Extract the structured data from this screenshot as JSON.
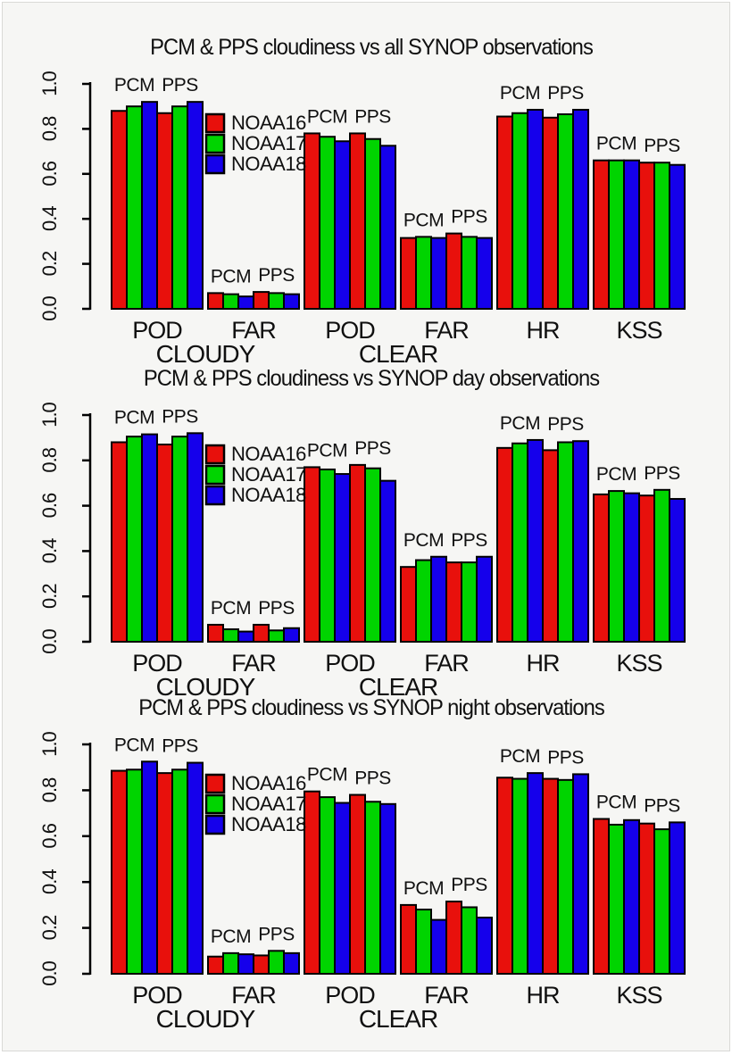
{
  "page": {
    "background": "#f6f6f4"
  },
  "colors": {
    "red": "#e8100c",
    "green": "#00d400",
    "blue": "#1500eb",
    "axis": "#000000"
  },
  "legend": {
    "entries": [
      {
        "label": "NOAA16",
        "color": "#e8100c"
      },
      {
        "label": "NOAA17",
        "color": "#00d400"
      },
      {
        "label": "NOAA18",
        "color": "#1500eb"
      }
    ]
  },
  "subgroup_labels": [
    "PCM",
    "PPS"
  ],
  "y_axis": {
    "ticks": [
      "0.0",
      "0.2",
      "0.4",
      "0.6",
      "0.8",
      "1.0"
    ],
    "min": 0,
    "max": 1
  },
  "x_axis": {
    "group_labels": [
      "POD",
      "FAR",
      "POD",
      "FAR",
      "HR",
      "KSS"
    ],
    "section_labels": [
      {
        "text": "CLOUDY",
        "groups": [
          0,
          1
        ]
      },
      {
        "text": "CLEAR",
        "groups": [
          2,
          3
        ]
      }
    ]
  },
  "chart_data": [
    {
      "type": "bar",
      "title": "PCM & PPS cloudiness vs all SYNOP observations",
      "categories": [
        "POD CLOUDY",
        "FAR CLOUDY",
        "POD CLEAR",
        "FAR CLEAR",
        "HR",
        "KSS"
      ],
      "ylim": [
        0,
        1
      ],
      "series": [
        {
          "name": "PCM NOAA16",
          "color": "#e8100c",
          "values": [
            0.88,
            0.07,
            0.78,
            0.315,
            0.855,
            0.66
          ]
        },
        {
          "name": "PCM NOAA17",
          "color": "#00d400",
          "values": [
            0.9,
            0.065,
            0.765,
            0.32,
            0.87,
            0.66
          ]
        },
        {
          "name": "PCM NOAA18",
          "color": "#1500eb",
          "values": [
            0.92,
            0.055,
            0.745,
            0.315,
            0.885,
            0.66
          ]
        },
        {
          "name": "PPS NOAA16",
          "color": "#e8100c",
          "values": [
            0.87,
            0.075,
            0.78,
            0.335,
            0.85,
            0.65
          ]
        },
        {
          "name": "PPS NOAA17",
          "color": "#00d400",
          "values": [
            0.9,
            0.07,
            0.755,
            0.32,
            0.865,
            0.65
          ]
        },
        {
          "name": "PPS NOAA18",
          "color": "#1500eb",
          "values": [
            0.92,
            0.065,
            0.725,
            0.315,
            0.885,
            0.64
          ]
        }
      ]
    },
    {
      "type": "bar",
      "title": "PCM & PPS cloudiness vs SYNOP day observations",
      "categories": [
        "POD CLOUDY",
        "FAR CLOUDY",
        "POD CLEAR",
        "FAR CLEAR",
        "HR",
        "KSS"
      ],
      "ylim": [
        0,
        1
      ],
      "series": [
        {
          "name": "PCM NOAA16",
          "color": "#e8100c",
          "values": [
            0.88,
            0.075,
            0.77,
            0.33,
            0.855,
            0.65
          ]
        },
        {
          "name": "PCM NOAA17",
          "color": "#00d400",
          "values": [
            0.905,
            0.055,
            0.76,
            0.36,
            0.875,
            0.665
          ]
        },
        {
          "name": "PCM NOAA18",
          "color": "#1500eb",
          "values": [
            0.915,
            0.045,
            0.74,
            0.375,
            0.89,
            0.655
          ]
        },
        {
          "name": "PPS NOAA16",
          "color": "#e8100c",
          "values": [
            0.87,
            0.075,
            0.78,
            0.35,
            0.845,
            0.645
          ]
        },
        {
          "name": "PPS NOAA17",
          "color": "#00d400",
          "values": [
            0.905,
            0.05,
            0.765,
            0.35,
            0.88,
            0.67
          ]
        },
        {
          "name": "PPS NOAA18",
          "color": "#1500eb",
          "values": [
            0.92,
            0.06,
            0.71,
            0.375,
            0.885,
            0.63
          ]
        }
      ]
    },
    {
      "type": "bar",
      "title": "PCM & PPS cloudiness vs SYNOP night observations",
      "categories": [
        "POD CLOUDY",
        "FAR CLOUDY",
        "POD CLEAR",
        "FAR CLEAR",
        "HR",
        "KSS"
      ],
      "ylim": [
        0,
        1
      ],
      "series": [
        {
          "name": "PCM NOAA16",
          "color": "#e8100c",
          "values": [
            0.885,
            0.075,
            0.795,
            0.3,
            0.855,
            0.675
          ]
        },
        {
          "name": "PCM NOAA17",
          "color": "#00d400",
          "values": [
            0.89,
            0.09,
            0.77,
            0.28,
            0.85,
            0.65
          ]
        },
        {
          "name": "PCM NOAA18",
          "color": "#1500eb",
          "values": [
            0.925,
            0.085,
            0.745,
            0.235,
            0.875,
            0.67
          ]
        },
        {
          "name": "PPS NOAA16",
          "color": "#e8100c",
          "values": [
            0.875,
            0.08,
            0.78,
            0.315,
            0.85,
            0.655
          ]
        },
        {
          "name": "PPS NOAA17",
          "color": "#00d400",
          "values": [
            0.89,
            0.1,
            0.75,
            0.29,
            0.845,
            0.63
          ]
        },
        {
          "name": "PPS NOAA18",
          "color": "#1500eb",
          "values": [
            0.92,
            0.09,
            0.74,
            0.245,
            0.87,
            0.66
          ]
        }
      ]
    }
  ]
}
